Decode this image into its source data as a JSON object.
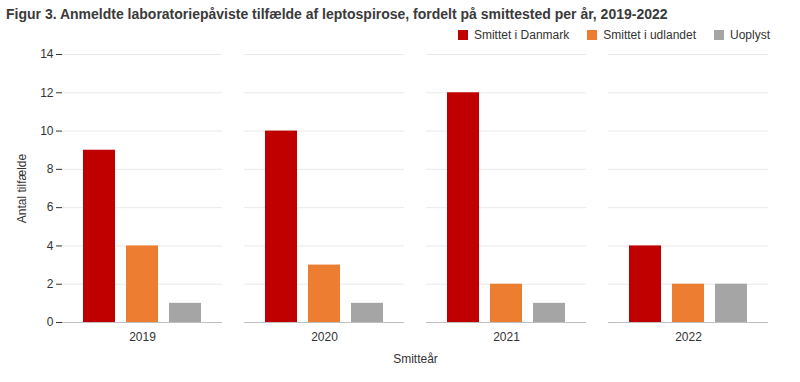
{
  "chart_data": {
    "type": "bar",
    "title": "Figur 3. Anmeldte laboratoriepåviste tilfælde af leptospirose, fordelt på smittested per år, 2019-2022",
    "x_label": "Smitteår",
    "y_label": "Antal tilfælde",
    "categories": [
      "2019",
      "2020",
      "2021",
      "2022"
    ],
    "series": [
      {
        "name": "Smittet i Danmark",
        "color": "#c00000",
        "values": [
          9,
          10,
          12,
          4
        ]
      },
      {
        "name": "Smittet i udlandet",
        "color": "#ed7d31",
        "values": [
          4,
          3,
          2,
          2
        ]
      },
      {
        "name": "Uoplyst",
        "color": "#a5a5a5",
        "values": [
          1,
          1,
          1,
          2
        ]
      }
    ],
    "ylim": [
      0,
      14
    ],
    "yticks": [
      0,
      2,
      4,
      6,
      8,
      10,
      12,
      14
    ],
    "grid": true,
    "legend": "top-right"
  }
}
